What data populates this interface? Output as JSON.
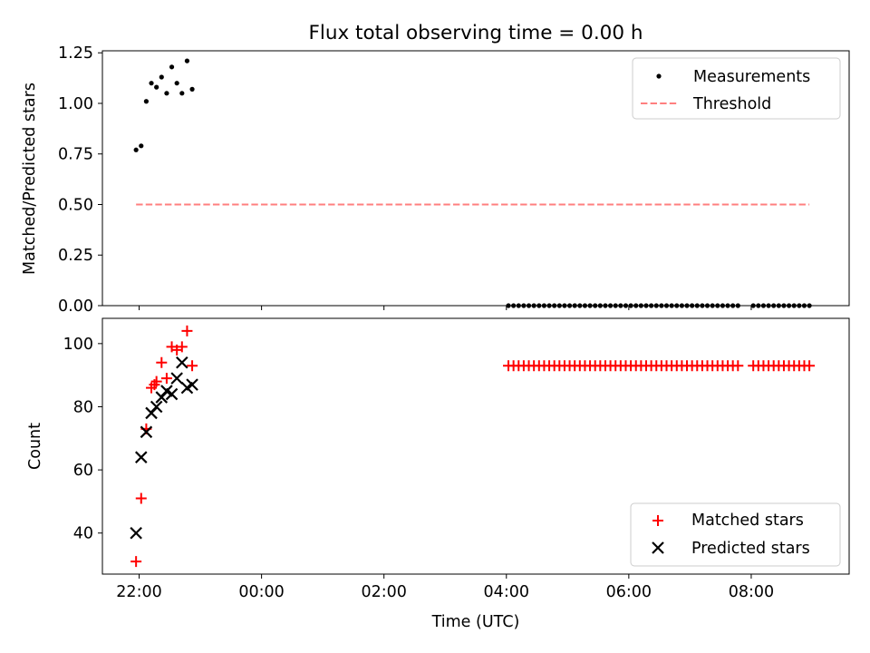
{
  "figure": {
    "title": "Flux total observing time = 0.00 h",
    "xlabel": "Time (UTC)"
  },
  "colors": {
    "measurements": "#000000",
    "threshold": "#ff7f7f",
    "matched": "#ff0000",
    "predicted": "#000000"
  },
  "chart_data": [
    {
      "type": "scatter",
      "ylabel": "Matched/Predicted stars",
      "xlim": [
        "21:24",
        "09:36"
      ],
      "ylim": [
        0,
        1.26
      ],
      "x_ticks": [
        "22:00",
        "00:00",
        "02:00",
        "04:00",
        "06:00",
        "08:00"
      ],
      "y_ticks": [
        "0.00",
        "0.25",
        "0.50",
        "0.75",
        "1.00",
        "1.25"
      ],
      "legend": {
        "position": "upper right",
        "entries": [
          "Measurements",
          "Threshold"
        ]
      },
      "series": [
        {
          "name": "Measurements",
          "marker": "dot",
          "points": [
            [
              "21:57",
              0.77
            ],
            [
              "22:02",
              0.79
            ],
            [
              "22:07",
              1.01
            ],
            [
              "22:12",
              1.1
            ],
            [
              "22:17",
              1.08
            ],
            [
              "22:22",
              1.13
            ],
            [
              "22:27",
              1.05
            ],
            [
              "22:32",
              1.18
            ],
            [
              "22:37",
              1.1
            ],
            [
              "22:42",
              1.05
            ],
            [
              "22:47",
              1.21
            ],
            [
              "22:52",
              1.07
            ]
          ],
          "segments": [
            {
              "from": "04:02",
              "to": "07:47",
              "step_minutes": 5,
              "value": 0.0
            },
            {
              "from": "08:02",
              "to": "08:57",
              "step_minutes": 5,
              "value": 0.0
            }
          ]
        },
        {
          "name": "Threshold",
          "style": "dashed-line",
          "points": [
            [
              "21:57",
              0.5
            ],
            [
              "08:57",
              0.5
            ]
          ]
        }
      ]
    },
    {
      "type": "scatter",
      "ylabel": "Count",
      "xlim": [
        "21:24",
        "09:36"
      ],
      "ylim": [
        27,
        108
      ],
      "x_ticks": [
        "22:00",
        "00:00",
        "02:00",
        "04:00",
        "06:00",
        "08:00"
      ],
      "y_ticks": [
        "40",
        "60",
        "80",
        "100"
      ],
      "legend": {
        "position": "lower right",
        "entries": [
          "Matched stars",
          "Predicted stars"
        ]
      },
      "series": [
        {
          "name": "Matched stars",
          "marker": "plus",
          "points": [
            [
              "21:57",
              31
            ],
            [
              "22:02",
              51
            ],
            [
              "22:07",
              73
            ],
            [
              "22:12",
              86
            ],
            [
              "22:15",
              87
            ],
            [
              "22:17",
              88
            ],
            [
              "22:22",
              94
            ],
            [
              "22:27",
              89
            ],
            [
              "22:32",
              99
            ],
            [
              "22:37",
              98
            ],
            [
              "22:42",
              99
            ],
            [
              "22:47",
              104
            ],
            [
              "22:52",
              93
            ]
          ],
          "segments": [
            {
              "from": "04:02",
              "to": "07:47",
              "step_minutes": 5,
              "value": 93
            },
            {
              "from": "08:02",
              "to": "08:57",
              "step_minutes": 5,
              "value": 93
            }
          ]
        },
        {
          "name": "Predicted stars",
          "marker": "x",
          "points": [
            [
              "21:57",
              40
            ],
            [
              "22:02",
              64
            ],
            [
              "22:07",
              72
            ],
            [
              "22:12",
              78
            ],
            [
              "22:17",
              80
            ],
            [
              "22:22",
              83
            ],
            [
              "22:27",
              85
            ],
            [
              "22:32",
              84
            ],
            [
              "22:37",
              89
            ],
            [
              "22:42",
              94
            ],
            [
              "22:47",
              86
            ],
            [
              "22:52",
              87
            ]
          ]
        }
      ]
    }
  ]
}
